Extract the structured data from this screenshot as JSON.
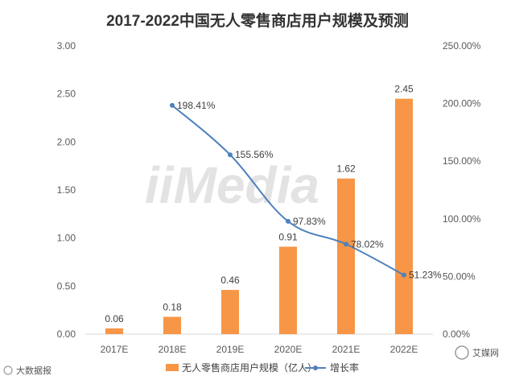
{
  "chart_data": {
    "type": "bar+line",
    "title": "2017-2022中国无人零售商店用户规模及预测",
    "categories": [
      "2017E",
      "2018E",
      "2019E",
      "2020E",
      "2021E",
      "2022E"
    ],
    "series": [
      {
        "name": "无人零售商店用户规模（亿人）",
        "type": "bar",
        "axis": "left",
        "color": "#f79646",
        "values": [
          0.06,
          0.18,
          0.46,
          0.91,
          1.62,
          2.45
        ],
        "labels": [
          "0.06",
          "0.18",
          "0.46",
          "0.91",
          "1.62",
          "2.45"
        ]
      },
      {
        "name": "增长率",
        "type": "line",
        "axis": "right",
        "color": "#4f81bd",
        "values": [
          null,
          198.41,
          155.56,
          97.83,
          78.02,
          51.23
        ],
        "labels": [
          "",
          "198.41%",
          "155.56%",
          "97.83%",
          "78.02%",
          "51.23%"
        ]
      }
    ],
    "y_left": {
      "min": 0,
      "max": 3,
      "ticks": [
        "0.00",
        "0.50",
        "1.00",
        "1.50",
        "2.00",
        "2.50",
        "3.00"
      ]
    },
    "y_right": {
      "min": 0,
      "max": 250,
      "ticks": [
        "0.00%",
        "50.00%",
        "100.00%",
        "150.00%",
        "200.00%",
        "250.00%"
      ]
    },
    "legend_position": "bottom"
  },
  "watermark": "iiMedia",
  "credits": {
    "left": "大数据报",
    "right": "艾媒网"
  }
}
